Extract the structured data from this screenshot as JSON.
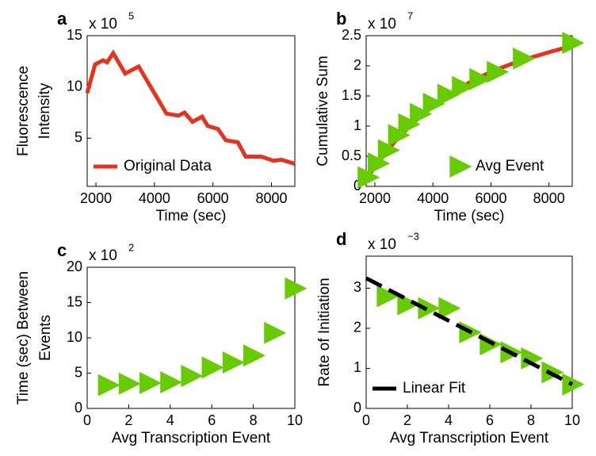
{
  "chart_data": [
    {
      "type": "line",
      "panel": "a",
      "multiplier": "x 10",
      "exponent": "5",
      "x_label": "Time (sec)",
      "y_label": [
        "Fluorescence",
        "Intensity"
      ],
      "xlim": [
        1700,
        8800
      ],
      "xticks": [
        2000,
        4000,
        6000,
        8000
      ],
      "ylim": [
        0.3,
        15
      ],
      "yticks": [
        5,
        10,
        15
      ],
      "legend": "lower left",
      "series": [
        {
          "name": "Original Data",
          "color": "#e8321e",
          "style": "line",
          "x": [
            1700,
            1970,
            2240,
            2380,
            2590,
            3000,
            3460,
            4410,
            4820,
            5030,
            5300,
            5630,
            5820,
            6170,
            6440,
            6850,
            7120,
            7660,
            8070,
            8340,
            8800
          ],
          "values": [
            9.4,
            12.2,
            12.6,
            12.4,
            13.3,
            11.3,
            12.0,
            7.4,
            7.2,
            7.5,
            6.6,
            7.1,
            6.2,
            5.9,
            4.8,
            4.6,
            3.2,
            3.2,
            2.8,
            2.9,
            2.5
          ]
        }
      ]
    },
    {
      "type": "line",
      "panel": "b",
      "multiplier": "x 10",
      "exponent": "7",
      "x_label": "Time (sec)",
      "y_label": [
        "Cumulative Sum"
      ],
      "xlim": [
        1700,
        8800
      ],
      "xticks": [
        2000,
        4000,
        6000,
        8000
      ],
      "ylim": [
        0,
        2.5
      ],
      "yticks": [
        0,
        0.5,
        1,
        1.5,
        2,
        2.5
      ],
      "legend": "lower right",
      "series": [
        {
          "color": "#e8321e",
          "style": "line",
          "x": [
            1700,
            2200,
            2700,
            3200,
            3700,
            4200,
            4800,
            5400,
            6000,
            6700,
            7400,
            8100,
            8800
          ],
          "values": [
            0.12,
            0.45,
            0.75,
            1.0,
            1.22,
            1.42,
            1.6,
            1.76,
            1.9,
            2.03,
            2.14,
            2.24,
            2.33
          ]
        },
        {
          "name": "Avg Event",
          "color": "#66cc00",
          "style": "triangle",
          "x": [
            1750,
            2100,
            2450,
            2800,
            3150,
            3550,
            4000,
            4500,
            5000,
            5600,
            6200,
            7100,
            8800
          ],
          "values": [
            0.15,
            0.38,
            0.6,
            0.85,
            1.03,
            1.2,
            1.37,
            1.52,
            1.65,
            1.78,
            1.9,
            2.12,
            2.38
          ]
        }
      ]
    },
    {
      "type": "scatter",
      "panel": "c",
      "multiplier": "x 10",
      "exponent": "2",
      "x_label": "Avg Transcription Event",
      "y_label": [
        "Time (sec) Between",
        "Events"
      ],
      "xlim": [
        0,
        10
      ],
      "xticks": [
        0,
        2,
        4,
        6,
        8,
        10
      ],
      "ylim": [
        0,
        20
      ],
      "yticks": [
        0,
        5,
        10,
        15,
        20
      ],
      "series": [
        {
          "color": "#66cc00",
          "style": "triangle",
          "x": [
            1,
            2,
            3,
            4,
            5,
            6,
            7,
            8,
            9,
            10
          ],
          "values": [
            3.3,
            3.5,
            3.6,
            3.7,
            4.6,
            5.8,
            6.5,
            7.5,
            10.7,
            17.0
          ]
        }
      ]
    },
    {
      "type": "scatter",
      "panel": "d",
      "multiplier": "x 10",
      "exponent": "−3",
      "x_label": "Avg Transcription Event",
      "y_label": [
        "Rate of Initiation"
      ],
      "xlim": [
        0,
        10
      ],
      "xticks": [
        0,
        2,
        4,
        6,
        8,
        10
      ],
      "ylim": [
        0,
        3.8
      ],
      "yticks": [
        0,
        1,
        2,
        3
      ],
      "legend": "lower left",
      "series": [
        {
          "color": "#66cc00",
          "style": "triangle",
          "x": [
            1,
            2,
            3,
            4,
            5,
            6,
            7,
            8,
            9,
            10
          ],
          "values": [
            2.8,
            2.6,
            2.5,
            2.5,
            1.9,
            1.6,
            1.4,
            1.25,
            0.9,
            0.6
          ]
        },
        {
          "name": "Linear Fit",
          "color": "#000000",
          "style": "dashed",
          "x": [
            0,
            10
          ],
          "values": [
            3.25,
            0.6
          ]
        }
      ]
    }
  ]
}
